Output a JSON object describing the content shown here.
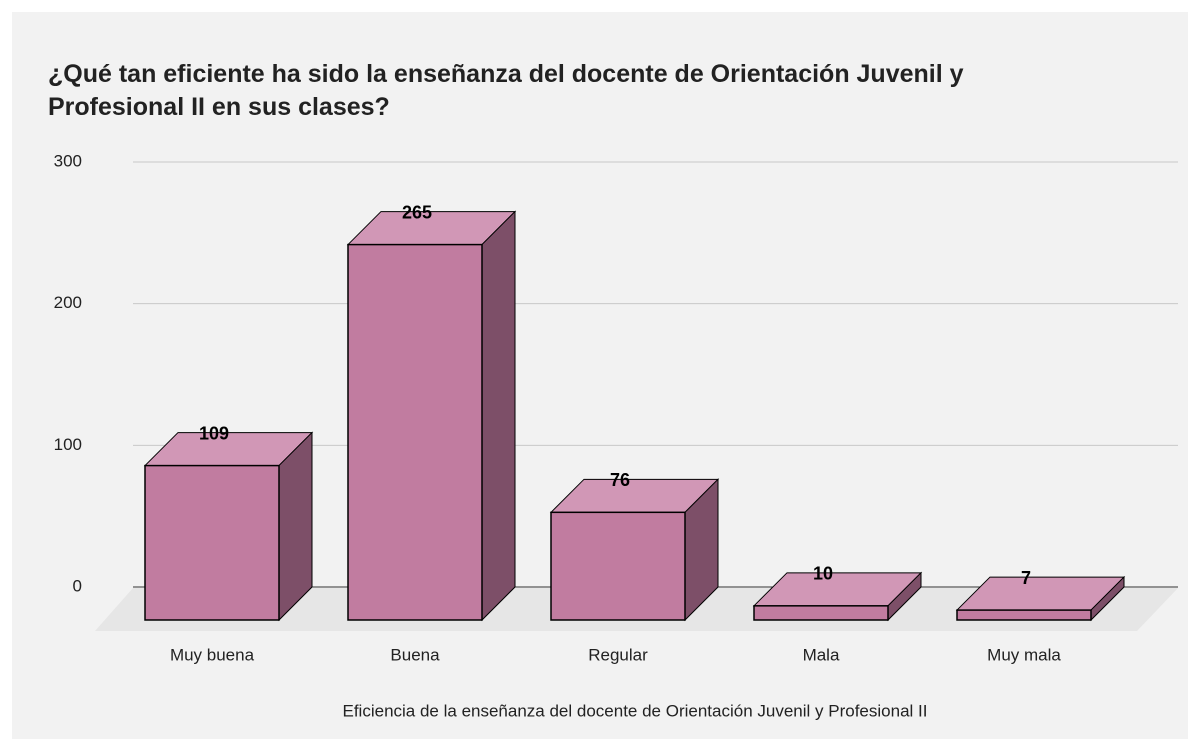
{
  "chart_data": {
    "type": "bar3d",
    "title": "¿Qué tan eficiente ha sido la enseñanza del docente de Orientación Juvenil y Profesional II en sus clases?",
    "x_label": "Eficiencia de la enseñanza del docente de Orientación Juvenil y Profesional II",
    "categories": [
      "Muy buena",
      "Buena",
      "Regular",
      "Mala",
      "Muy mala"
    ],
    "values": [
      109,
      265,
      76,
      10,
      7
    ],
    "color": "#c17ca0",
    "ylim": [
      0,
      300
    ],
    "yticks": [
      0,
      100,
      200,
      300
    ],
    "grid": true
  }
}
